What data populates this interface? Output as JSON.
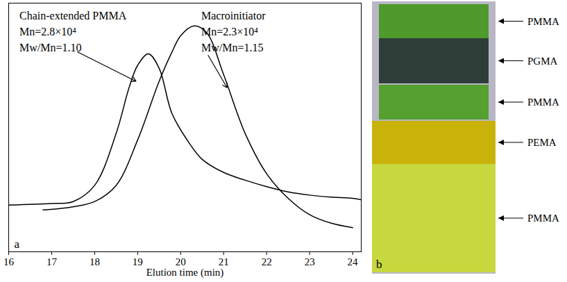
{
  "chart_data": {
    "type": "line",
    "panel_label": "a",
    "x_label": "Elution time (min)",
    "xlim": [
      16,
      24.2
    ],
    "xticks": [
      16,
      17,
      18,
      19,
      20,
      21,
      22,
      23,
      24
    ],
    "ylim": [
      0,
      100
    ],
    "yticks": [],
    "tick_labels": "x",
    "grid": false,
    "series": [
      {
        "name": "Chain-extended PMMA",
        "color": "#000000",
        "annotation": [
          "Mn=2.8×10⁴",
          "Mw/Mn=1.10"
        ],
        "x": [
          16,
          17,
          17.5,
          18,
          18.5,
          18.8,
          19.0,
          19.25,
          19.5,
          19.8,
          20.2,
          20.5,
          21,
          21.5,
          22,
          22.5,
          23,
          23.5,
          24,
          24.2
        ],
        "values": [
          18.8,
          19.4,
          20.2,
          26.7,
          47.6,
          66,
          75,
          79.6,
          73.8,
          55.5,
          43.7,
          37.2,
          31.9,
          28.8,
          26.2,
          24.1,
          22.8,
          22,
          21.5,
          20.9
        ]
      },
      {
        "name": "Macroinitiator",
        "color": "#000000",
        "annotation": [
          "Mn=2.3×10⁴",
          "Mw/Mn=1.15"
        ],
        "x": [
          16.8,
          17.5,
          18,
          18.5,
          19,
          19.5,
          19.8,
          20,
          20.3,
          20.6,
          21,
          21.5,
          22,
          22.5,
          23,
          23.5,
          24
        ],
        "values": [
          16.8,
          18.1,
          20.2,
          26.7,
          45,
          68.6,
          80.4,
          86.9,
          90.8,
          88.2,
          71.2,
          47.6,
          31.4,
          21.5,
          14.9,
          11.5,
          9.7
        ]
      }
    ]
  },
  "photo": {
    "panel_label": "b",
    "layers": [
      {
        "label": "PMMA",
        "color": "#4f9a2c"
      },
      {
        "label": "PGMA",
        "color": "#2f3d39"
      },
      {
        "label": "PMMA",
        "color": "#55a02e"
      },
      {
        "label": "PEMA",
        "color": "#c9b20a"
      },
      {
        "label": "PMMA",
        "color": "#c6d83e"
      }
    ]
  }
}
